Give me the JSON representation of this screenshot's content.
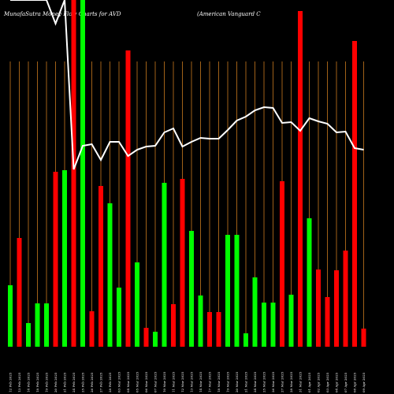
{
  "chart_data": {
    "type": "bar",
    "title": "MunafaSutra  Money Flow  Charts for AVD",
    "subtitle": "(American  Vanguard C",
    "ylim": [
      0,
      440
    ],
    "grid": true,
    "grid_color": "#c87a1e",
    "line_color": "#ffffff",
    "categories": [
      "12 Feb 2025",
      "13 Feb 2025",
      "14 Feb 2025",
      "18 Feb 2025",
      "19 Feb 2025",
      "20 Feb 2025",
      "21 Feb 2025",
      "24 Feb 2025",
      "25 Feb 2025",
      "26 Feb 2025",
      "27 Feb 2025",
      "28 Feb 2025",
      "03 Mar 2025",
      "04 Mar 2025",
      "05 Mar 2025",
      "06 Mar 2025",
      "07 Mar 2025",
      "10 Mar 2025",
      "11 Mar 2025",
      "12 Mar 2025",
      "13 Mar 2025",
      "14 Mar 2025",
      "17 Mar 2025",
      "18 Mar 2025",
      "19 Mar 2025",
      "20 Mar 2025",
      "21 Mar 2025",
      "24 Mar 2025",
      "25 Mar 2025",
      "26 Mar 2025",
      "27 Mar 2025",
      "28 Mar 2025",
      "31 Mar 2025",
      "01 Apr 2025",
      "02 Apr 2025",
      "03 Apr 2025",
      "04 Apr 2025",
      "07 Apr 2025",
      "08 Apr 2025",
      "09 Apr 2025"
    ],
    "series": [
      {
        "name": "Money Flow",
        "colors": [
          "#00ff00",
          "#ff0000",
          "#00ff00",
          "#00ff00",
          "#00ff00",
          "#ff0000",
          "#00ff00",
          "#ff0000",
          "#00ff00",
          "#ff0000",
          "#ff0000",
          "#00ff00",
          "#00ff00",
          "#ff0000",
          "#00ff00",
          "#ff0000",
          "#00ff00",
          "#00ff00",
          "#ff0000",
          "#ff0000",
          "#00ff00",
          "#00ff00",
          "#ff0000",
          "#ff0000",
          "#00ff00",
          "#00ff00",
          "#00ff00",
          "#00ff00",
          "#00ff00",
          "#00ff00",
          "#ff0000",
          "#00ff00",
          "#ff0000",
          "#00ff00",
          "#ff0000",
          "#ff0000",
          "#ff0000",
          "#ff0000",
          "#ff0000",
          "#ff0000"
        ],
        "values": [
          78,
          138,
          30,
          55,
          55,
          222,
          224,
          440,
          440,
          45,
          204,
          182,
          75,
          376,
          107,
          24,
          19,
          208,
          54,
          213,
          147,
          65,
          44,
          44,
          142,
          142,
          17,
          88,
          56,
          56,
          210,
          66,
          426,
          163,
          98,
          63,
          97,
          122,
          388,
          23
        ]
      },
      {
        "name": "Price",
        "type": "line",
        "values": [
          440,
          440,
          440,
          440,
          440,
          410,
          440,
          225,
          255,
          257,
          237,
          260,
          260,
          242,
          250,
          254,
          255,
          272,
          277,
          254,
          260,
          265,
          264,
          264,
          275,
          287,
          292,
          300,
          304,
          303,
          284,
          285,
          274,
          290,
          286,
          283,
          272,
          273,
          252,
          250
        ]
      }
    ]
  }
}
